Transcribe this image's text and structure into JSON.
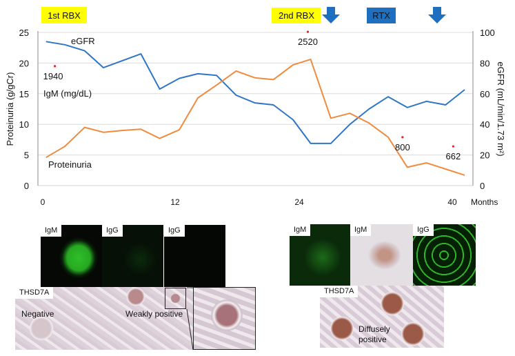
{
  "annotations": {
    "first_rbx": "1st RBX",
    "second_rbx": "2nd RBX",
    "rtx": "RTX",
    "colors": {
      "yellow": "#ffff00",
      "blue": "#1f6fc0",
      "arrow": "#1f6fc0"
    }
  },
  "chart_data": {
    "type": "line",
    "xlabel": "Months",
    "ylabel_left": "Proteinuria (g/gCr)",
    "ylabel_right": "eGFR (mL/min/1.73 m²)",
    "x_ticks": [
      0,
      12,
      24,
      40
    ],
    "x_tick_labels": [
      "0",
      "12",
      "24",
      "40"
    ],
    "y_left_range": [
      0,
      25
    ],
    "y_left_ticks": [
      "0",
      "5",
      "10",
      "15",
      "20",
      "25"
    ],
    "y_right_range": [
      0,
      100
    ],
    "y_right_ticks": [
      "0",
      "20",
      "40",
      "60",
      "80",
      "100"
    ],
    "grid": true,
    "x": [
      0.3,
      2.0,
      3.8,
      5.5,
      7.2,
      8.9,
      10.6,
      12.4,
      14.2,
      16.0,
      17.9,
      19.7,
      21.5,
      23.4,
      25.2,
      27.3,
      29.3,
      31.3,
      33.3,
      35.3,
      37.3,
      39.3,
      41.3
    ],
    "series": [
      {
        "name": "eGFR",
        "label": "eGFR",
        "axis": "right",
        "color": "#2e75c6",
        "values": [
          94,
          92,
          88,
          77,
          81.5,
          86,
          63,
          70,
          73,
          72,
          59,
          54,
          52.7,
          43,
          27.5,
          27.5,
          40,
          50,
          58,
          51,
          55,
          52.7,
          62.6
        ]
      },
      {
        "name": "Proteinuria",
        "label": "Proteinuria",
        "axis": "left",
        "color": "#f08a3c",
        "values": [
          4.6,
          6.4,
          9.5,
          8.7,
          9.0,
          9.2,
          7.7,
          9.1,
          14.3,
          16.4,
          18.7,
          17.6,
          17.3,
          19.7,
          20.6,
          11.0,
          11.8,
          10.2,
          7.9,
          3.0,
          3.7,
          2.7,
          1.7
        ]
      }
    ],
    "igm_points": [
      {
        "month": 1.1,
        "plot_y": 19.5,
        "label": "1940"
      },
      {
        "month": 24.9,
        "plot_y": 25.1,
        "label": "2520"
      },
      {
        "month": 34.8,
        "plot_y": 7.9,
        "label": "800"
      },
      {
        "month": 40.1,
        "plot_y": 6.4,
        "label": "662"
      }
    ],
    "igm_unit_label": "IgM (mg/dL)",
    "igm_color": "#e0202a"
  },
  "micrographs": {
    "left": {
      "top": [
        "IgM",
        "IgG",
        "IgG"
      ],
      "bottom_label": "THSD7A",
      "negative": "Negative",
      "weakly_positive": "Weakly positive"
    },
    "right": {
      "top": [
        "IgM",
        "IgM",
        "IgG"
      ],
      "bottom_label": "THSD7A",
      "diffusely_positive": "Diffusely positive"
    }
  }
}
